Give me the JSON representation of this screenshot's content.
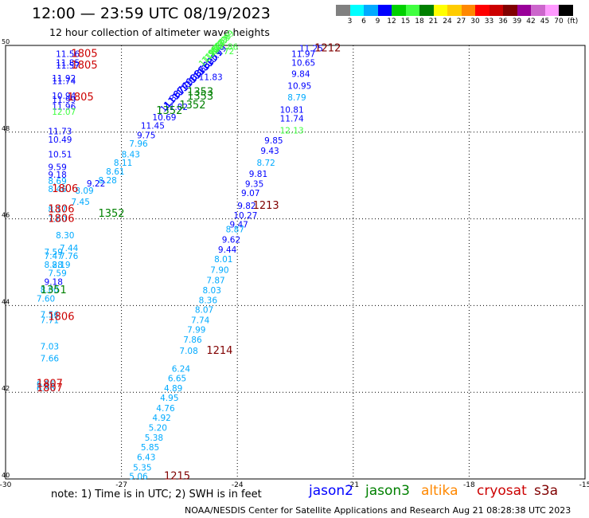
{
  "header": {
    "title": "12:00 — 23:59 UTC 08/19/2023",
    "subtitle": "12 hour collection of altimeter wave heights"
  },
  "legend": {
    "colors": [
      "#808080",
      "#00ffff",
      "#00aaff",
      "#0000ff",
      "#00d000",
      "#40ff40",
      "#008000",
      "#ffff00",
      "#ffcc00",
      "#ff8800",
      "#ff0000",
      "#cc0000",
      "#800000",
      "#990099",
      "#cc66cc",
      "#ff99ff",
      "#000000"
    ],
    "labels": [
      "3",
      "6",
      "9",
      "12",
      "15",
      "18",
      "21",
      "24",
      "27",
      "30",
      "33",
      "36",
      "39",
      "42",
      "45",
      "70",
      "(ft)"
    ]
  },
  "axes": {
    "x_ticks": [
      "-30",
      "-27",
      "-24",
      "-21",
      "-18",
      "-15"
    ],
    "y_ticks": [
      "50",
      "48",
      "46",
      "44",
      "42",
      "40"
    ]
  },
  "footer": {
    "note": "note:  1) Time is in UTC;  2) SWH is in feet",
    "credit": "NOAA/NESDIS Center for Satellite Applications and Research    Aug 21 08:28:38 UTC 2023",
    "satellites": [
      {
        "name": "jason2",
        "color": "#0000ff"
      },
      {
        "name": "jason3",
        "color": "#008000"
      },
      {
        "name": "altika",
        "color": "#ff8800"
      },
      {
        "name": "cryosat",
        "color": "#cc0000"
      },
      {
        "name": "s3a",
        "color": "#800000"
      }
    ]
  },
  "chart_data": {
    "type": "scatter",
    "xlim": [
      -30,
      -15
    ],
    "ylim": [
      40,
      50
    ],
    "grid": true,
    "points": [
      {
        "x": -28.7,
        "y": 49.73,
        "v": "11.56",
        "c": "#0000ff"
      },
      {
        "x": -28.7,
        "y": 49.53,
        "v": "11.85",
        "c": "#0000ff"
      },
      {
        "x": -28.7,
        "y": 49.47,
        "v": "11.57",
        "c": "#0000ff"
      },
      {
        "x": -28.8,
        "y": 49.17,
        "v": "11.92",
        "c": "#0000ff"
      },
      {
        "x": -28.8,
        "y": 49.11,
        "v": "11.74",
        "c": "#0000ff"
      },
      {
        "x": -28.8,
        "y": 48.77,
        "v": "10.94",
        "c": "#0000ff"
      },
      {
        "x": -28.8,
        "y": 48.68,
        "v": "11.99",
        "c": "#0000ff"
      },
      {
        "x": -28.8,
        "y": 48.52,
        "v": "11.96",
        "c": "#0000ff"
      },
      {
        "x": -28.8,
        "y": 48.4,
        "v": "12.07",
        "c": "#40ff40"
      },
      {
        "x": -28.9,
        "y": 47.95,
        "v": "11.73",
        "c": "#0000ff"
      },
      {
        "x": -28.9,
        "y": 47.76,
        "v": "10.49",
        "c": "#0000ff"
      },
      {
        "x": -28.9,
        "y": 47.42,
        "v": "10.51",
        "c": "#0000ff"
      },
      {
        "x": -28.9,
        "y": 47.12,
        "v": "9.59",
        "c": "#0000ff"
      },
      {
        "x": -28.9,
        "y": 46.95,
        "v": "9.18",
        "c": "#0000ff"
      },
      {
        "x": -28.9,
        "y": 46.8,
        "v": "8.69",
        "c": "#00aaff"
      },
      {
        "x": -28.9,
        "y": 46.62,
        "v": "8.46",
        "c": "#00aaff"
      },
      {
        "x": -28.9,
        "y": 46.15,
        "v": "8.17",
        "c": "#00aaff"
      },
      {
        "x": -28.9,
        "y": 45.93,
        "v": "7.60",
        "c": "#00aaff"
      },
      {
        "x": -28.7,
        "y": 45.55,
        "v": "8.30",
        "c": "#00aaff"
      },
      {
        "x": -28.6,
        "y": 45.26,
        "v": "7.44",
        "c": "#00aaff"
      },
      {
        "x": -29.0,
        "y": 45.17,
        "v": "7.59",
        "c": "#00aaff"
      },
      {
        "x": -29.0,
        "y": 45.07,
        "v": "7.47",
        "c": "#00aaff"
      },
      {
        "x": -28.6,
        "y": 45.07,
        "v": "7.76",
        "c": "#00aaff"
      },
      {
        "x": -29.0,
        "y": 44.87,
        "v": "8.28",
        "c": "#00aaff"
      },
      {
        "x": -28.8,
        "y": 44.87,
        "v": "8.19",
        "c": "#00aaff"
      },
      {
        "x": -28.9,
        "y": 44.68,
        "v": "7.59",
        "c": "#00aaff"
      },
      {
        "x": -29.0,
        "y": 44.48,
        "v": "9.18",
        "c": "#0000ff"
      },
      {
        "x": -29.1,
        "y": 44.29,
        "v": "8.00",
        "c": "#00aaff"
      },
      {
        "x": -29.2,
        "y": 44.09,
        "v": "7.60",
        "c": "#00aaff"
      },
      {
        "x": -29.1,
        "y": 43.72,
        "v": "7.56",
        "c": "#00aaff"
      },
      {
        "x": -29.1,
        "y": 43.59,
        "v": "7.71",
        "c": "#00aaff"
      },
      {
        "x": -29.1,
        "y": 42.99,
        "v": "7.03",
        "c": "#00aaff"
      },
      {
        "x": -29.1,
        "y": 42.71,
        "v": "7.66",
        "c": "#00aaff"
      },
      {
        "x": -29.2,
        "y": 42.12,
        "v": "6.86",
        "c": "#00aaff"
      },
      {
        "x": -29.2,
        "y": 42.02,
        "v": "6.96",
        "c": "#00aaff"
      },
      {
        "x": -27.9,
        "y": 46.75,
        "v": "9.22",
        "c": "#0000ff"
      },
      {
        "x": -28.2,
        "y": 46.58,
        "v": "8.09",
        "c": "#00aaff"
      },
      {
        "x": -28.3,
        "y": 46.32,
        "v": "7.45",
        "c": "#00aaff"
      },
      {
        "x": -27.6,
        "y": 46.82,
        "v": "8.28",
        "c": "#00aaff"
      },
      {
        "x": -27.4,
        "y": 47.02,
        "v": "8.61",
        "c": "#00aaff"
      },
      {
        "x": -27.2,
        "y": 47.22,
        "v": "8.11",
        "c": "#00aaff"
      },
      {
        "x": -27.0,
        "y": 47.42,
        "v": "8.43",
        "c": "#00aaff"
      },
      {
        "x": -26.8,
        "y": 47.67,
        "v": "7.96",
        "c": "#00aaff"
      },
      {
        "x": -26.6,
        "y": 47.86,
        "v": "9.75",
        "c": "#0000ff"
      },
      {
        "x": -26.5,
        "y": 48.08,
        "v": "11.45",
        "c": "#0000ff"
      },
      {
        "x": -26.2,
        "y": 48.27,
        "v": "10.69",
        "c": "#0000ff"
      },
      {
        "x": -25.9,
        "y": 48.51,
        "v": "11.82",
        "c": "#0000ff"
      },
      {
        "x": -25.0,
        "y": 49.2,
        "v": "11.83",
        "c": "#0000ff"
      },
      {
        "x": -24.6,
        "y": 49.9,
        "v": "11.86",
        "c": "#40ff40"
      },
      {
        "x": -24.7,
        "y": 49.8,
        "v": "11.72",
        "c": "#40ff40"
      },
      {
        "x": -22.4,
        "y": 49.86,
        "v": "11.25",
        "c": "#0000ff"
      },
      {
        "x": -22.6,
        "y": 49.73,
        "v": "11.97",
        "c": "#0000ff"
      },
      {
        "x": -22.6,
        "y": 49.53,
        "v": "10.65",
        "c": "#0000ff"
      },
      {
        "x": -22.6,
        "y": 49.27,
        "v": "9.84",
        "c": "#0000ff"
      },
      {
        "x": -22.7,
        "y": 49.0,
        "v": "10.95",
        "c": "#0000ff"
      },
      {
        "x": -22.7,
        "y": 48.73,
        "v": "8.79",
        "c": "#00aaff"
      },
      {
        "x": -22.9,
        "y": 48.45,
        "v": "10.81",
        "c": "#0000ff"
      },
      {
        "x": -22.9,
        "y": 48.24,
        "v": "11.74",
        "c": "#0000ff"
      },
      {
        "x": -22.9,
        "y": 47.97,
        "v": "12.13",
        "c": "#40ff40"
      },
      {
        "x": -23.3,
        "y": 47.74,
        "v": "9.85",
        "c": "#0000ff"
      },
      {
        "x": -23.4,
        "y": 47.5,
        "v": "9.43",
        "c": "#0000ff"
      },
      {
        "x": -23.5,
        "y": 47.22,
        "v": "8.72",
        "c": "#00aaff"
      },
      {
        "x": -23.7,
        "y": 46.97,
        "v": "9.81",
        "c": "#0000ff"
      },
      {
        "x": -23.8,
        "y": 46.74,
        "v": "9.35",
        "c": "#0000ff"
      },
      {
        "x": -23.9,
        "y": 46.53,
        "v": "9.07",
        "c": "#0000ff"
      },
      {
        "x": -24.0,
        "y": 46.23,
        "v": "9.82",
        "c": "#0000ff"
      },
      {
        "x": -24.1,
        "y": 46.01,
        "v": "10.27",
        "c": "#0000ff"
      },
      {
        "x": -24.2,
        "y": 45.8,
        "v": "9.47",
        "c": "#0000ff"
      },
      {
        "x": -24.3,
        "y": 45.69,
        "v": "8.87",
        "c": "#00aaff"
      },
      {
        "x": -24.4,
        "y": 45.45,
        "v": "9.62",
        "c": "#0000ff"
      },
      {
        "x": -24.5,
        "y": 45.22,
        "v": "9.44",
        "c": "#0000ff"
      },
      {
        "x": -24.6,
        "y": 45.0,
        "v": "8.01",
        "c": "#00aaff"
      },
      {
        "x": -24.7,
        "y": 44.75,
        "v": "7.90",
        "c": "#00aaff"
      },
      {
        "x": -24.8,
        "y": 44.51,
        "v": "7.87",
        "c": "#00aaff"
      },
      {
        "x": -24.9,
        "y": 44.28,
        "v": "8.03",
        "c": "#00aaff"
      },
      {
        "x": -25.0,
        "y": 44.05,
        "v": "8.36",
        "c": "#00aaff"
      },
      {
        "x": -25.1,
        "y": 43.83,
        "v": "8.07",
        "c": "#00aaff"
      },
      {
        "x": -25.2,
        "y": 43.59,
        "v": "7.74",
        "c": "#00aaff"
      },
      {
        "x": -25.3,
        "y": 43.37,
        "v": "7.99",
        "c": "#00aaff"
      },
      {
        "x": -25.4,
        "y": 43.14,
        "v": "7.86",
        "c": "#00aaff"
      },
      {
        "x": -25.5,
        "y": 42.89,
        "v": "7.08",
        "c": "#00aaff"
      },
      {
        "x": -25.7,
        "y": 42.47,
        "v": "6.24",
        "c": "#00aaff"
      },
      {
        "x": -25.8,
        "y": 42.25,
        "v": "6.65",
        "c": "#00aaff"
      },
      {
        "x": -25.9,
        "y": 42.02,
        "v": "4.89",
        "c": "#00aaff"
      },
      {
        "x": -26.0,
        "y": 41.8,
        "v": "4.95",
        "c": "#00aaff"
      },
      {
        "x": -26.1,
        "y": 41.56,
        "v": "4.76",
        "c": "#00aaff"
      },
      {
        "x": -26.2,
        "y": 41.34,
        "v": "4.92",
        "c": "#00aaff"
      },
      {
        "x": -26.3,
        "y": 41.11,
        "v": "5.20",
        "c": "#00aaff"
      },
      {
        "x": -26.4,
        "y": 40.88,
        "v": "5.38",
        "c": "#00aaff"
      },
      {
        "x": -26.5,
        "y": 40.66,
        "v": "5.85",
        "c": "#00aaff"
      },
      {
        "x": -26.6,
        "y": 40.43,
        "v": "6.43",
        "c": "#00aaff"
      },
      {
        "x": -26.7,
        "y": 40.19,
        "v": "5.35",
        "c": "#00aaff"
      },
      {
        "x": -26.8,
        "y": 39.99,
        "v": "5.06",
        "c": "#00aaff"
      },
      {
        "x": -25.3,
        "y": 48.85,
        "v": "1353",
        "c": "#008000"
      },
      {
        "x": -25.3,
        "y": 48.75,
        "v": "1353",
        "c": "#008000"
      },
      {
        "x": -25.5,
        "y": 48.55,
        "v": "1352",
        "c": "#008000"
      },
      {
        "x": -26.1,
        "y": 48.42,
        "v": "1352",
        "c": "#008000"
      },
      {
        "x": -27.6,
        "y": 46.05,
        "v": "1352",
        "c": "#008000"
      },
      {
        "x": -29.1,
        "y": 44.28,
        "v": "1351",
        "c": "#008000"
      }
    ],
    "track_labels": [
      {
        "x": -28.3,
        "y": 49.73,
        "v": "1805",
        "c": "#cc0000"
      },
      {
        "x": -28.3,
        "y": 49.47,
        "v": "1805",
        "c": "#cc0000"
      },
      {
        "x": -28.4,
        "y": 48.73,
        "v": "1805",
        "c": "#cc0000"
      },
      {
        "x": -28.8,
        "y": 46.62,
        "v": "1806",
        "c": "#cc0000"
      },
      {
        "x": -28.9,
        "y": 46.15,
        "v": "1806",
        "c": "#cc0000"
      },
      {
        "x": -28.9,
        "y": 45.93,
        "v": "1806",
        "c": "#cc0000"
      },
      {
        "x": -28.9,
        "y": 43.67,
        "v": "1806",
        "c": "#cc0000"
      },
      {
        "x": -29.2,
        "y": 42.12,
        "v": "1807",
        "c": "#cc0000"
      },
      {
        "x": -29.2,
        "y": 42.02,
        "v": "1807",
        "c": "#cc0000"
      },
      {
        "x": -22.0,
        "y": 49.86,
        "v": "1212",
        "c": "#800000"
      },
      {
        "x": -23.6,
        "y": 46.23,
        "v": "1213",
        "c": "#800000"
      },
      {
        "x": -24.8,
        "y": 42.89,
        "v": "1214",
        "c": "#800000"
      },
      {
        "x": -25.9,
        "y": 39.99,
        "v": "1215",
        "c": "#800000"
      }
    ],
    "dense_band": {
      "color": "#0000ff",
      "start": {
        "x": -25.9,
        "y": 48.45
      },
      "end": {
        "x": -24.7,
        "y": 49.5
      },
      "labels": [
        "11.86",
        "11.87",
        "11.74",
        "11.76",
        "11.90",
        "11.63",
        "11.87",
        "11.66",
        "11.82",
        "11.95",
        "11.71",
        "11.99"
      ]
    },
    "dense_band_green": {
      "color": "#40ff40",
      "start": {
        "x": -24.9,
        "y": 49.5
      },
      "end": {
        "x": -24.5,
        "y": 49.85
      },
      "labels": [
        "11.95",
        "11.82",
        "11.77",
        "11.80",
        "11.86",
        "11.99"
      ]
    }
  }
}
